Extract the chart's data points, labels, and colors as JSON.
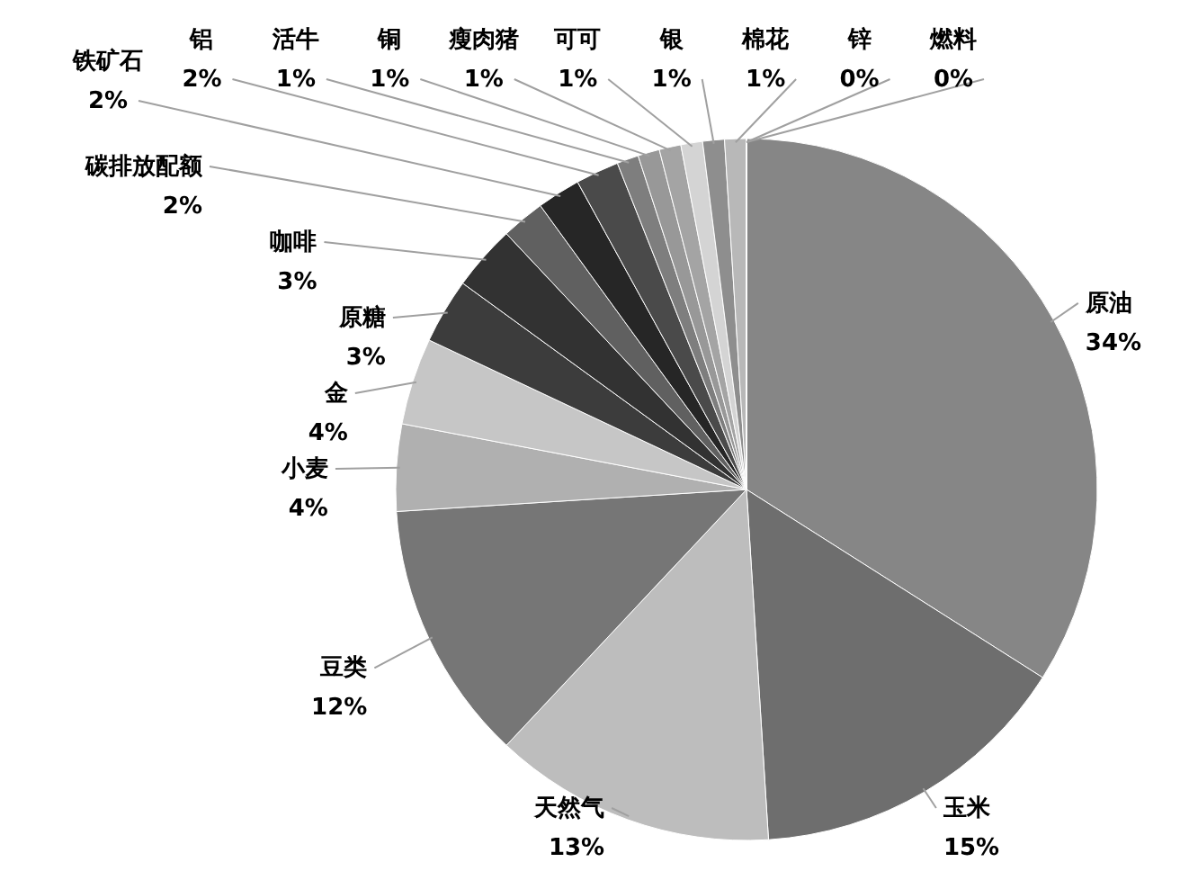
{
  "chart_data": {
    "type": "pie",
    "categories": [
      "原油",
      "玉米",
      "天然气",
      "豆类",
      "小麦",
      "金",
      "原糖",
      "咖啡",
      "碳排放配额",
      "铁矿石",
      "铝",
      "活牛",
      "铜",
      "瘦肉猪",
      "可可",
      "银",
      "棉花",
      "锌",
      "燃料"
    ],
    "values": [
      34,
      15,
      13,
      12,
      4,
      4,
      3,
      3,
      2,
      2,
      2,
      1,
      1,
      1,
      1,
      1,
      1,
      0,
      0
    ],
    "value_labels": [
      "34%",
      "15%",
      "13%",
      "12%",
      "4%",
      "4%",
      "3%",
      "3%",
      "2%",
      "2%",
      "2%",
      "1%",
      "1%",
      "1%",
      "1%",
      "1%",
      "1%",
      "0%",
      "0%"
    ],
    "colors": [
      "#868686",
      "#6e6e6e",
      "#bdbdbd",
      "#767676",
      "#b0b0b0",
      "#c6c6c6",
      "#3c3c3c",
      "#323232",
      "#606060",
      "#262626",
      "#4a4a4a",
      "#7e7e7e",
      "#989898",
      "#a4a4a4",
      "#d4d4d4",
      "#8e8e8e",
      "#b8b8b8",
      "#555555",
      "#1a1a1a"
    ]
  }
}
